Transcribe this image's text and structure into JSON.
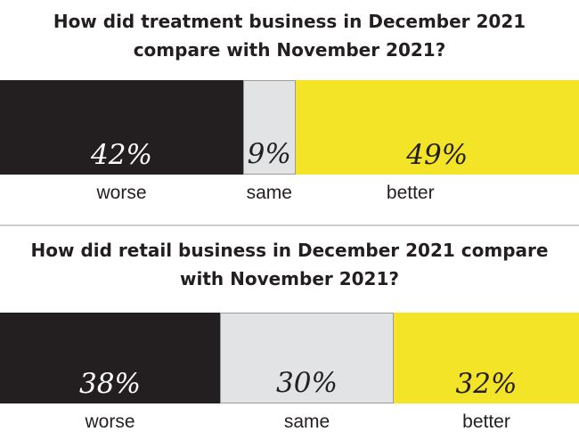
{
  "colors": {
    "worse": "#231f20",
    "same": "#e2e3e5",
    "better": "#f4e428",
    "worse_text": "#ffffff",
    "same_text": "#231f20",
    "better_text": "#231f20"
  },
  "chart_data": [
    {
      "type": "bar",
      "title": "How did treatment business in December 2021 compare with November 2021?",
      "categories": [
        "worse",
        "same",
        "better"
      ],
      "values": [
        42,
        9,
        49
      ],
      "value_labels": [
        "42%",
        "9%",
        "49%"
      ]
    },
    {
      "type": "bar",
      "title": "How did retail business in December 2021 compare with November 2021?",
      "categories": [
        "worse",
        "same",
        "better"
      ],
      "values": [
        38,
        30,
        32
      ],
      "value_labels": [
        "38%",
        "30%",
        "32%"
      ]
    }
  ]
}
